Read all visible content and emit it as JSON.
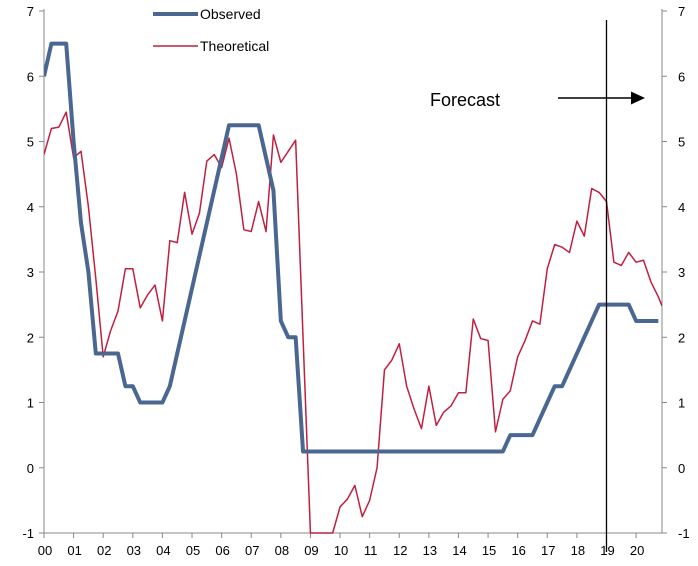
{
  "chart_data": {
    "type": "line",
    "title": "",
    "xlabel": "",
    "ylabel": "",
    "ylim": [
      -1,
      7
    ],
    "y_ticks": [
      "-1",
      "0",
      "1",
      "2",
      "3",
      "4",
      "5",
      "6",
      "7"
    ],
    "x_tick_labels": [
      "00",
      "01",
      "02",
      "03",
      "04",
      "05",
      "06",
      "07",
      "08",
      "09",
      "10",
      "11",
      "12",
      "13",
      "14",
      "15",
      "16",
      "17",
      "18",
      "19",
      "20"
    ],
    "x_range": [
      2000,
      2020.875
    ],
    "grid": false,
    "legend": "top-center",
    "series": [
      {
        "name": "Observed",
        "color": "#4a6792",
        "points": [
          [
            2000.0,
            6.0
          ],
          [
            2000.25,
            6.5
          ],
          [
            2000.5,
            6.5
          ],
          [
            2000.75,
            6.5
          ],
          [
            2001.0,
            5.0
          ],
          [
            2001.25,
            3.75
          ],
          [
            2001.5,
            3.0
          ],
          [
            2001.75,
            1.75
          ],
          [
            2002.0,
            1.75
          ],
          [
            2002.25,
            1.75
          ],
          [
            2002.5,
            1.75
          ],
          [
            2002.75,
            1.25
          ],
          [
            2003.0,
            1.25
          ],
          [
            2003.25,
            1.0
          ],
          [
            2003.5,
            1.0
          ],
          [
            2003.75,
            1.0
          ],
          [
            2004.0,
            1.0
          ],
          [
            2004.25,
            1.25
          ],
          [
            2004.5,
            1.75
          ],
          [
            2004.75,
            2.25
          ],
          [
            2005.0,
            2.75
          ],
          [
            2005.25,
            3.25
          ],
          [
            2005.5,
            3.75
          ],
          [
            2005.75,
            4.25
          ],
          [
            2006.0,
            4.75
          ],
          [
            2006.25,
            5.25
          ],
          [
            2006.5,
            5.25
          ],
          [
            2006.75,
            5.25
          ],
          [
            2007.0,
            5.25
          ],
          [
            2007.25,
            5.25
          ],
          [
            2007.5,
            4.75
          ],
          [
            2007.75,
            4.25
          ],
          [
            2008.0,
            2.25
          ],
          [
            2008.25,
            2.0
          ],
          [
            2008.5,
            2.0
          ],
          [
            2008.75,
            0.25
          ],
          [
            2009.0,
            0.25
          ],
          [
            2015.5,
            0.25
          ],
          [
            2015.75,
            0.5
          ],
          [
            2016.0,
            0.5
          ],
          [
            2016.25,
            0.5
          ],
          [
            2016.5,
            0.5
          ],
          [
            2016.75,
            0.75
          ],
          [
            2017.0,
            1.0
          ],
          [
            2017.25,
            1.25
          ],
          [
            2017.5,
            1.25
          ],
          [
            2017.75,
            1.5
          ],
          [
            2018.0,
            1.75
          ],
          [
            2018.25,
            2.0
          ],
          [
            2018.5,
            2.25
          ],
          [
            2018.75,
            2.5
          ],
          [
            2019.0,
            2.5
          ],
          [
            2019.25,
            2.5
          ],
          [
            2019.5,
            2.5
          ],
          [
            2019.75,
            2.5
          ],
          [
            2020.0,
            2.25
          ],
          [
            2020.25,
            2.25
          ],
          [
            2020.5,
            2.25
          ],
          [
            2020.75,
            2.25
          ]
        ]
      },
      {
        "name": "Theoretical",
        "color": "#c0203f",
        "points": [
          [
            2000.0,
            4.8
          ],
          [
            2000.25,
            5.2
          ],
          [
            2000.5,
            5.22
          ],
          [
            2000.75,
            5.45
          ],
          [
            2001.0,
            4.75
          ],
          [
            2001.25,
            4.85
          ],
          [
            2001.5,
            4.0
          ],
          [
            2001.75,
            2.9
          ],
          [
            2002.0,
            1.7
          ],
          [
            2002.25,
            2.1
          ],
          [
            2002.5,
            2.4
          ],
          [
            2002.75,
            3.05
          ],
          [
            2003.0,
            3.05
          ],
          [
            2003.25,
            2.45
          ],
          [
            2003.5,
            2.65
          ],
          [
            2003.75,
            2.8
          ],
          [
            2004.0,
            2.25
          ],
          [
            2004.25,
            3.48
          ],
          [
            2004.5,
            3.45
          ],
          [
            2004.75,
            4.22
          ],
          [
            2005.0,
            3.58
          ],
          [
            2005.25,
            3.9
          ],
          [
            2005.5,
            4.7
          ],
          [
            2005.75,
            4.8
          ],
          [
            2006.0,
            4.6
          ],
          [
            2006.25,
            5.05
          ],
          [
            2006.5,
            4.5
          ],
          [
            2006.75,
            3.65
          ],
          [
            2007.0,
            3.62
          ],
          [
            2007.25,
            4.08
          ],
          [
            2007.5,
            3.62
          ],
          [
            2007.75,
            5.1
          ],
          [
            2008.0,
            4.68
          ],
          [
            2008.25,
            4.85
          ],
          [
            2008.5,
            5.02
          ],
          [
            2008.75,
            2.0
          ],
          [
            2009.0,
            -1.0
          ],
          [
            2009.75,
            -1.0
          ],
          [
            2010.0,
            -0.6
          ],
          [
            2010.25,
            -0.48
          ],
          [
            2010.5,
            -0.27
          ],
          [
            2010.75,
            -0.75
          ],
          [
            2011.0,
            -0.5
          ],
          [
            2011.25,
            0.0
          ],
          [
            2011.5,
            1.5
          ],
          [
            2011.75,
            1.65
          ],
          [
            2012.0,
            1.9
          ],
          [
            2012.25,
            1.25
          ],
          [
            2012.5,
            0.9
          ],
          [
            2012.75,
            0.6
          ],
          [
            2013.0,
            1.25
          ],
          [
            2013.25,
            0.65
          ],
          [
            2013.5,
            0.85
          ],
          [
            2013.75,
            0.95
          ],
          [
            2014.0,
            1.15
          ],
          [
            2014.25,
            1.15
          ],
          [
            2014.5,
            2.28
          ],
          [
            2014.75,
            1.98
          ],
          [
            2015.0,
            1.95
          ],
          [
            2015.25,
            0.55
          ],
          [
            2015.5,
            1.05
          ],
          [
            2015.75,
            1.18
          ],
          [
            2016.0,
            1.7
          ],
          [
            2016.25,
            1.95
          ],
          [
            2016.5,
            2.25
          ],
          [
            2016.75,
            2.2
          ],
          [
            2017.0,
            3.05
          ],
          [
            2017.25,
            3.42
          ],
          [
            2017.5,
            3.38
          ],
          [
            2017.75,
            3.3
          ],
          [
            2018.0,
            3.78
          ],
          [
            2018.25,
            3.55
          ],
          [
            2018.5,
            4.28
          ],
          [
            2018.75,
            4.22
          ],
          [
            2019.0,
            4.08
          ],
          [
            2019.25,
            3.15
          ],
          [
            2019.5,
            3.1
          ],
          [
            2019.75,
            3.3
          ],
          [
            2020.0,
            3.15
          ],
          [
            2020.25,
            3.18
          ],
          [
            2020.5,
            2.85
          ],
          [
            2020.75,
            2.62
          ],
          [
            2020.875,
            2.48
          ]
        ]
      }
    ],
    "annotations": {
      "forecast_label": "Forecast",
      "forecast_line_x": 2019.0
    }
  }
}
